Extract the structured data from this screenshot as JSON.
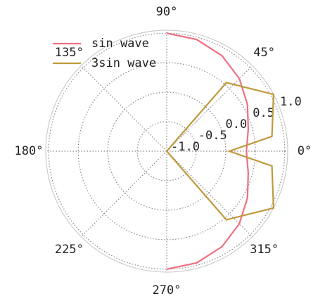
{
  "chart_data": {
    "type": "polar-line",
    "rlim": [
      -1,
      1.05
    ],
    "rticks": [
      {
        "value": -1,
        "label": "-1.0"
      },
      {
        "value": -0.5,
        "label": "-0.5"
      },
      {
        "value": 0,
        "label": "0.0"
      },
      {
        "value": 0.5,
        "label": "0.5"
      },
      {
        "value": 1,
        "label": "1.0"
      }
    ],
    "thetaticks": [
      {
        "value": 0,
        "label": "0°"
      },
      {
        "value": 45,
        "label": "45°"
      },
      {
        "value": 90,
        "label": "90°"
      },
      {
        "value": 135,
        "label": "135°"
      },
      {
        "value": 180,
        "label": "180°"
      },
      {
        "value": 225,
        "label": "225°"
      },
      {
        "value": 270,
        "label": "270°"
      },
      {
        "value": 315,
        "label": "315°"
      }
    ],
    "grid": true,
    "legend": "upper left",
    "series": [
      {
        "name": "sin wave",
        "color": "#f07080",
        "x": [
          -90,
          -75,
          -60,
          -45,
          -30,
          -15,
          0,
          15,
          30,
          45,
          60,
          75,
          90
        ],
        "values": [
          1,
          0.96,
          0.87,
          0.74,
          0.58,
          0.43,
          0.35,
          0.43,
          0.58,
          0.74,
          0.87,
          0.96,
          1
        ]
      },
      {
        "name": "3sin wave",
        "color": "#bf9a3c",
        "x": [
          -90,
          -49,
          -28,
          -8,
          0,
          8,
          28,
          49,
          90
        ],
        "values": [
          -1,
          0.54,
          1.05,
          0.8,
          0.06,
          0.8,
          1.05,
          0.54,
          -1
        ]
      }
    ]
  }
}
